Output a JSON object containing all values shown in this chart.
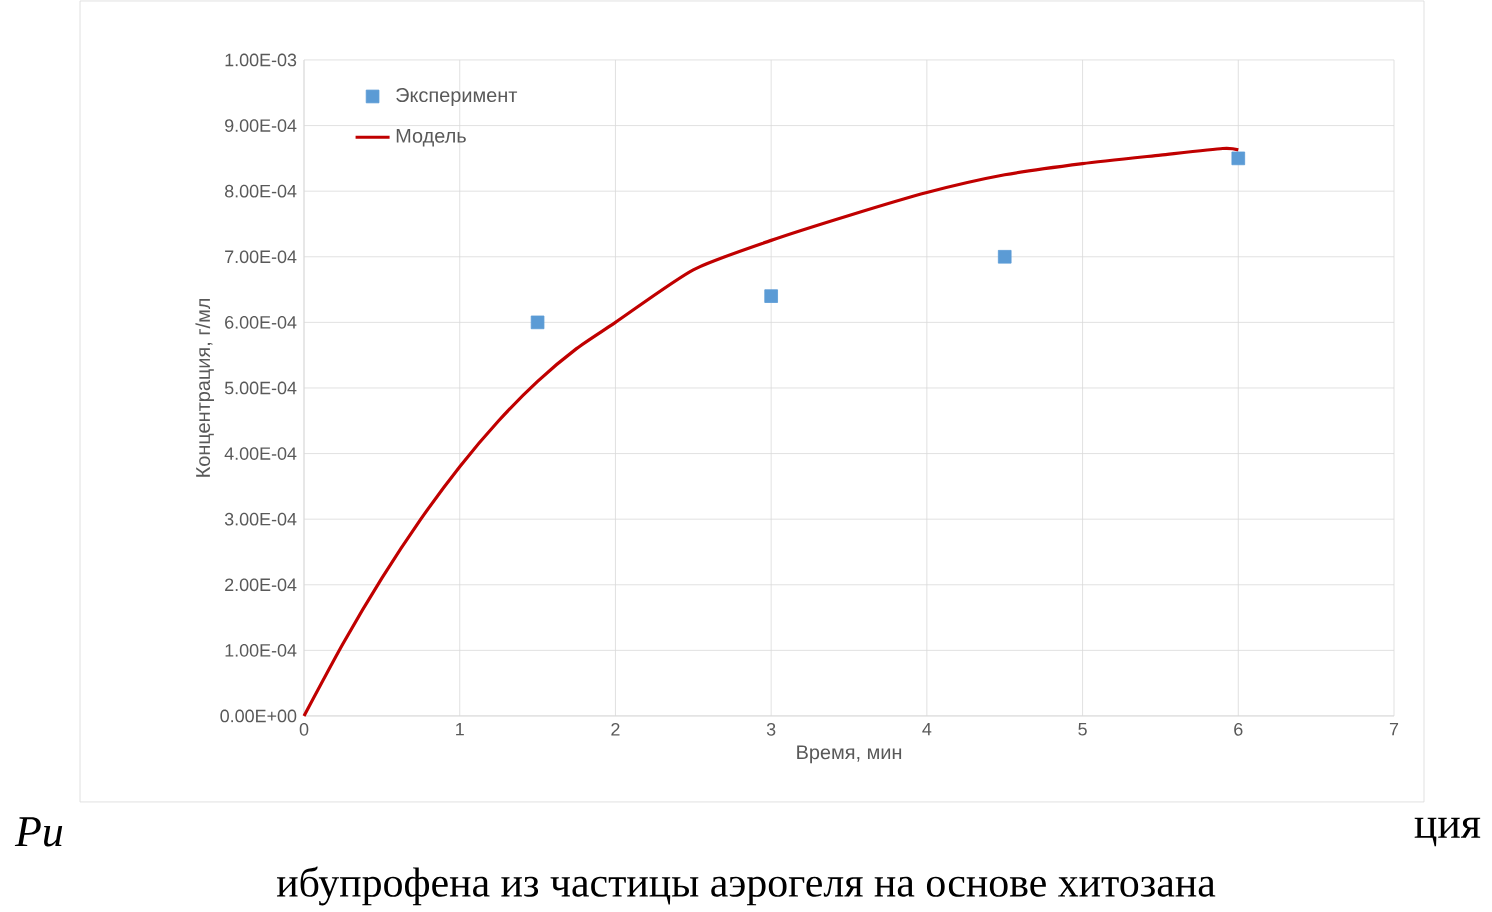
{
  "chart_data": {
    "type": "scatter",
    "xlabel": "Время, мин",
    "ylabel": "Концентрация, г/мл",
    "series": [
      {
        "name": "Эксперимент",
        "marker": "square",
        "color": "#5b9bd5",
        "x": [
          1.5,
          3,
          4.5,
          6
        ],
        "values": [
          0.0006,
          0.00064,
          0.0007,
          0.00085
        ]
      },
      {
        "name": "Модель",
        "type": "line",
        "marker": "none",
        "line_style": "solid",
        "color": "#c00000",
        "x": [
          0,
          0.25,
          0.5,
          0.75,
          1,
          1.25,
          1.5,
          1.75,
          2,
          2.5,
          3,
          3.5,
          4,
          4.5,
          5,
          5.5,
          5.9,
          6
        ],
        "values": [
          0,
          0.00011,
          0.00021,
          0.0003,
          0.00038,
          0.00045,
          0.00051,
          0.00056,
          0.0006,
          0.00068,
          0.000725,
          0.000763,
          0.000798,
          0.000825,
          0.000842,
          0.000855,
          0.000865,
          0.000863
        ]
      }
    ],
    "xlim": [
      0,
      7
    ],
    "xticks": [
      0,
      1,
      2,
      3,
      4,
      5,
      6,
      7
    ],
    "ylim": [
      0,
      0.001
    ],
    "yticks": [
      {
        "value": 0,
        "label": "0.00E+00"
      },
      {
        "value": 0.0001,
        "label": "1.00E-04"
      },
      {
        "value": 0.0002,
        "label": "2.00E-04"
      },
      {
        "value": 0.0003,
        "label": "3.00E-04"
      },
      {
        "value": 0.0004,
        "label": "4.00E-04"
      },
      {
        "value": 0.0005,
        "label": "5.00E-04"
      },
      {
        "value": 0.0006,
        "label": "6.00E-04"
      },
      {
        "value": 0.0007,
        "label": "7.00E-04"
      },
      {
        "value": 0.0008,
        "label": "8.00E-04"
      },
      {
        "value": 0.0009,
        "label": "9.00E-04"
      },
      {
        "value": 0.001,
        "label": "1.00E-03"
      }
    ],
    "grid": true,
    "legend": "top left",
    "annotations": [
      "Ри",
      "ция",
      "ибупрофена из частицы аэрогеля на основе хитозана"
    ]
  }
}
